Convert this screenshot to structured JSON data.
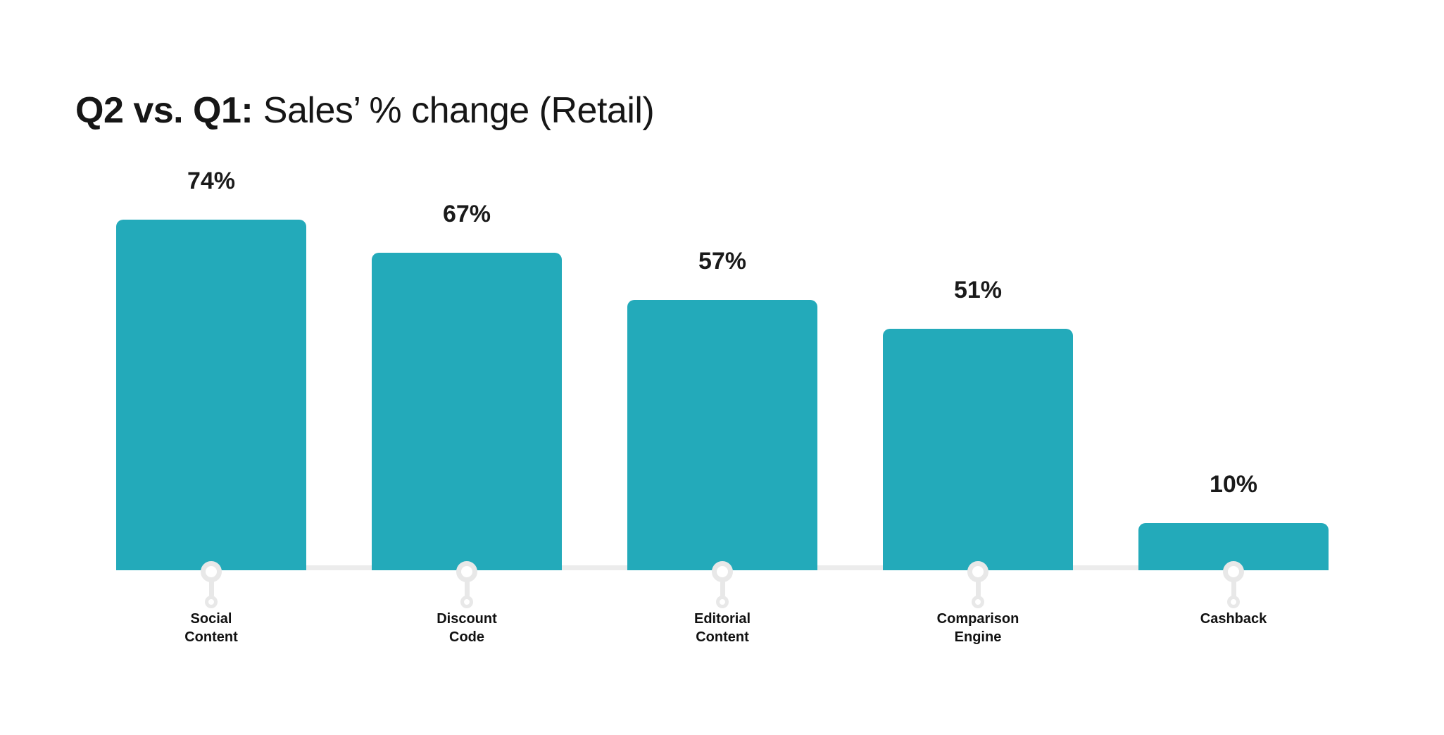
{
  "title": {
    "bold": "Q2 vs. Q1:",
    "rest": "Sales’ % change (Retail)"
  },
  "chart_data": {
    "type": "bar",
    "title": "Q2 vs. Q1: Sales’ % change (Retail)",
    "categories": [
      "Social Content",
      "Discount Code",
      "Editorial Content",
      "Comparison Engine",
      "Cashback"
    ],
    "category_lines": [
      [
        "Social",
        "Content"
      ],
      [
        "Discount",
        "Code"
      ],
      [
        "Editorial",
        "Content"
      ],
      [
        "Comparison",
        "Engine"
      ],
      [
        "Cashback"
      ]
    ],
    "values": [
      74,
      67,
      57,
      51,
      10
    ],
    "value_labels": [
      "74%",
      "67%",
      "57%",
      "51%",
      "10%"
    ],
    "xlabel": "",
    "ylabel": "",
    "ylim": [
      0,
      100
    ],
    "grid": false,
    "legend": false,
    "axes_shown": false,
    "bar_color": "#23AABA",
    "marker_color": "#e8e8e8",
    "baseline_color": "#ececec",
    "label_color": "#1a1a1a"
  },
  "colors": {
    "background": "#ffffff",
    "bar": "#23AABA",
    "text": "#161616",
    "marker": "#e8e8e8",
    "baseline": "#ececec"
  }
}
